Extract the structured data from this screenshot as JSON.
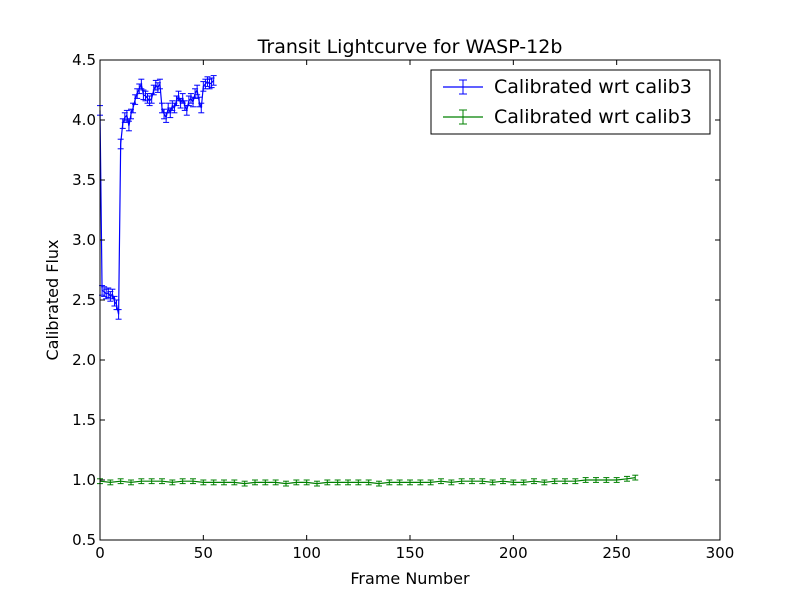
{
  "chart_data": {
    "type": "line",
    "title": "Transit Lightcurve for WASP-12b",
    "xlabel": "Frame Number",
    "ylabel": "Calibrated Flux",
    "xlim": [
      0,
      300
    ],
    "ylim": [
      0.5,
      4.5
    ],
    "xticks": [
      "0",
      "50",
      "100",
      "150",
      "200",
      "250",
      "300"
    ],
    "yticks": [
      "0.5",
      "1.0",
      "1.5",
      "2.0",
      "2.5",
      "3.0",
      "3.5",
      "4.0",
      "4.5"
    ],
    "grid": false,
    "legend_position": "top-right",
    "error_bars": true,
    "series": [
      {
        "name": "Calibrated wrt calib3",
        "color": "#0000ff",
        "x": [
          0,
          1,
          2,
          3,
          4,
          5,
          6,
          7,
          8,
          9,
          10,
          11,
          12,
          13,
          14,
          15,
          16,
          17,
          18,
          19,
          20,
          21,
          22,
          23,
          24,
          25,
          26,
          27,
          28,
          29,
          30,
          31,
          32,
          33,
          34,
          35,
          36,
          37,
          38,
          39,
          40,
          41,
          42,
          43,
          44,
          45,
          46,
          47,
          48,
          49,
          50,
          51,
          52,
          53,
          54,
          55
        ],
        "y": [
          4.08,
          2.58,
          2.57,
          2.55,
          2.56,
          2.53,
          2.55,
          2.49,
          2.46,
          2.38,
          3.8,
          3.97,
          4.02,
          4.04,
          3.95,
          4.05,
          4.1,
          4.17,
          4.22,
          4.26,
          4.3,
          4.21,
          4.2,
          4.18,
          4.16,
          4.18,
          4.25,
          4.29,
          4.27,
          4.3,
          4.1,
          4.05,
          4.02,
          4.1,
          4.06,
          4.12,
          4.1,
          4.16,
          4.2,
          4.14,
          4.18,
          4.12,
          4.08,
          4.16,
          4.18,
          4.15,
          4.22,
          4.25,
          4.15,
          4.1,
          4.28,
          4.3,
          4.32,
          4.3,
          4.31,
          4.33
        ],
        "yerr": 0.04
      },
      {
        "name": "Calibrated wrt calib3",
        "color": "#008000",
        "x": [
          0,
          5,
          10,
          15,
          20,
          25,
          30,
          35,
          40,
          45,
          50,
          55,
          60,
          65,
          70,
          75,
          80,
          85,
          90,
          95,
          100,
          105,
          110,
          115,
          120,
          125,
          130,
          135,
          140,
          145,
          150,
          155,
          160,
          165,
          170,
          175,
          180,
          185,
          190,
          195,
          200,
          205,
          210,
          215,
          220,
          225,
          230,
          235,
          240,
          245,
          250,
          255,
          259
        ],
        "y": [
          0.99,
          0.98,
          0.99,
          0.98,
          0.99,
          0.99,
          0.99,
          0.98,
          0.99,
          0.99,
          0.98,
          0.98,
          0.98,
          0.98,
          0.97,
          0.98,
          0.98,
          0.98,
          0.97,
          0.98,
          0.98,
          0.97,
          0.98,
          0.98,
          0.98,
          0.98,
          0.98,
          0.97,
          0.98,
          0.98,
          0.98,
          0.98,
          0.98,
          0.99,
          0.98,
          0.99,
          0.99,
          0.99,
          0.98,
          0.99,
          0.98,
          0.98,
          0.99,
          0.98,
          0.99,
          0.99,
          0.99,
          1.0,
          1.0,
          1.0,
          1.0,
          1.01,
          1.02
        ],
        "yerr": 0.02
      }
    ]
  }
}
